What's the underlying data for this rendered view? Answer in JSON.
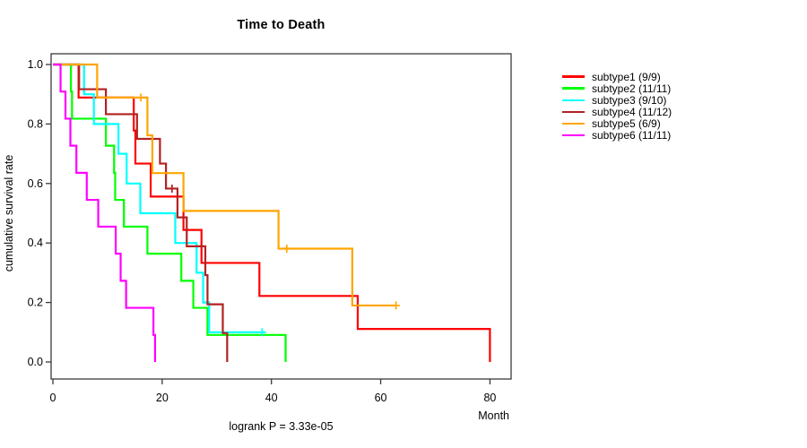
{
  "title": "Time to Death",
  "footer": "logrank P = 3.33e-05",
  "chart_data": {
    "type": "line",
    "subtype": "kaplan-meier-step",
    "title": "Time to Death",
    "xlabel": "Month",
    "ylabel": "cumulative survival rate",
    "xlim": [
      0,
      84
    ],
    "ylim": [
      0,
      1
    ],
    "x_ticks": [
      0,
      20,
      40,
      60,
      80
    ],
    "y_ticks": [
      0.0,
      0.2,
      0.4,
      0.6,
      0.8,
      1.0
    ],
    "grid": false,
    "legend_position": "right-outside",
    "annotation": "logrank P = 3.33e-05",
    "axis_color": "#3a3a3a",
    "series": [
      {
        "name": "subtype1 (9/9)",
        "color": "#ff0000",
        "start": [
          0,
          1.0
        ],
        "drops": [
          [
            4.7,
            0.889
          ],
          [
            14.8,
            0.778
          ],
          [
            15.1,
            0.667
          ],
          [
            17.9,
            0.556
          ],
          [
            23.9,
            0.444
          ],
          [
            27.2,
            0.333
          ],
          [
            37.8,
            0.222
          ],
          [
            55.8,
            0.111
          ],
          [
            80,
            0.0
          ]
        ],
        "censors": [],
        "end": 80
      },
      {
        "name": "subtype2 (11/11)",
        "color": "#00ff00",
        "start": [
          0,
          1.0
        ],
        "drops": [
          [
            3.3,
            0.909
          ],
          [
            3.5,
            0.818
          ],
          [
            9.7,
            0.727
          ],
          [
            11.2,
            0.636
          ],
          [
            11.4,
            0.545
          ],
          [
            13.0,
            0.455
          ],
          [
            17.3,
            0.364
          ],
          [
            23.5,
            0.273
          ],
          [
            25.7,
            0.182
          ],
          [
            28.3,
            0.091
          ],
          [
            42.6,
            0.0
          ]
        ],
        "censors": [],
        "end": 42.6
      },
      {
        "name": "subtype3 (9/10)",
        "color": "#00ffff",
        "start": [
          0,
          1.0
        ],
        "drops": [
          [
            5.7,
            0.9
          ],
          [
            7.5,
            0.8
          ],
          [
            12.0,
            0.7
          ],
          [
            13.5,
            0.6
          ],
          [
            16.0,
            0.5
          ],
          [
            22.4,
            0.4
          ],
          [
            26.3,
            0.3
          ],
          [
            27.5,
            0.2
          ],
          [
            28.6,
            0.1
          ]
        ],
        "censors": [
          [
            38.3,
            0.1
          ]
        ],
        "end": 38.8
      },
      {
        "name": "subtype4 (11/12)",
        "color": "#b22222",
        "start": [
          0,
          1.0
        ],
        "drops": [
          [
            4.8,
            0.917
          ],
          [
            9.7,
            0.833
          ],
          [
            15.4,
            0.75
          ],
          [
            19.6,
            0.667
          ],
          [
            20.7,
            0.583
          ],
          [
            22.8,
            0.486
          ],
          [
            24.5,
            0.389
          ],
          [
            27.9,
            0.292
          ],
          [
            28.3,
            0.194
          ],
          [
            31.1,
            0.097
          ],
          [
            31.9,
            0.0
          ]
        ],
        "censors": [
          [
            21.8,
            0.583
          ]
        ],
        "end": 31.9
      },
      {
        "name": "subtype5 (6/9)",
        "color": "#ffa500",
        "start": [
          0,
          1.0
        ],
        "drops": [
          [
            8.1,
            0.889
          ],
          [
            17.3,
            0.762
          ],
          [
            18.2,
            0.635
          ],
          [
            23.9,
            0.508
          ],
          [
            41.3,
            0.381
          ],
          [
            54.8,
            0.19
          ]
        ],
        "censors": [
          [
            16.1,
            0.889
          ],
          [
            42.8,
            0.381
          ],
          [
            62.8,
            0.19
          ]
        ],
        "end": 62.8
      },
      {
        "name": "subtype6 (11/11)",
        "color": "#ff00ff",
        "start": [
          0,
          1.0
        ],
        "drops": [
          [
            1.4,
            0.909
          ],
          [
            2.3,
            0.818
          ],
          [
            3.2,
            0.727
          ],
          [
            4.3,
            0.636
          ],
          [
            6.2,
            0.545
          ],
          [
            8.3,
            0.455
          ],
          [
            11.5,
            0.364
          ],
          [
            12.4,
            0.273
          ],
          [
            13.4,
            0.182
          ],
          [
            18.4,
            0.091
          ],
          [
            18.7,
            0.0
          ]
        ],
        "censors": [],
        "end": 18.7
      }
    ]
  }
}
